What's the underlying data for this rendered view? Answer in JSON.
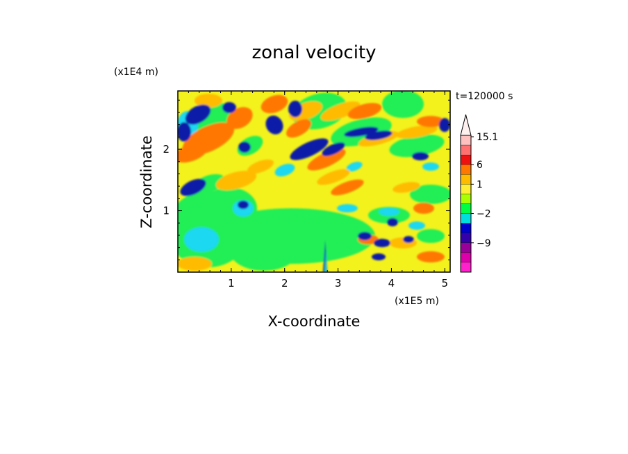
{
  "chart_data": {
    "type": "heatmap",
    "title": "zonal velocity",
    "xlabel": "X-coordinate",
    "ylabel": "Z-coordinate",
    "x_multiplier": "(x1E5 m)",
    "y_multiplier": "(x1E4 m)",
    "time_label": "t=120000 s",
    "xlim": [
      0,
      5.1
    ],
    "ylim": [
      0,
      2.95
    ],
    "xticks": [
      "1",
      "2",
      "3",
      "4",
      "5"
    ],
    "xtick_values": [
      1,
      2,
      3,
      4,
      5
    ],
    "yticks": [
      "1",
      "2"
    ],
    "ytick_values": [
      1,
      2
    ],
    "colorbar": {
      "labels": [
        "15.1",
        "6",
        "1",
        "−2",
        "−9"
      ],
      "colors": [
        "#ffc0c0",
        "#ff7070",
        "#ee1111",
        "#ff7700",
        "#ffbb00",
        "#ffee33",
        "#aaff00",
        "#00ff44",
        "#00dddd",
        "#0000cc",
        "#3300aa",
        "#990099",
        "#dd00aa",
        "#ff22cc"
      ]
    },
    "palette": {
      "darkblue": "#0b1aa8",
      "cyan": "#1ed8f0",
      "green": "#22ee55",
      "yellow": "#f3f21d",
      "orange": "#ffbb00",
      "redorange": "#ff7700",
      "background": "#f3f21d"
    }
  }
}
